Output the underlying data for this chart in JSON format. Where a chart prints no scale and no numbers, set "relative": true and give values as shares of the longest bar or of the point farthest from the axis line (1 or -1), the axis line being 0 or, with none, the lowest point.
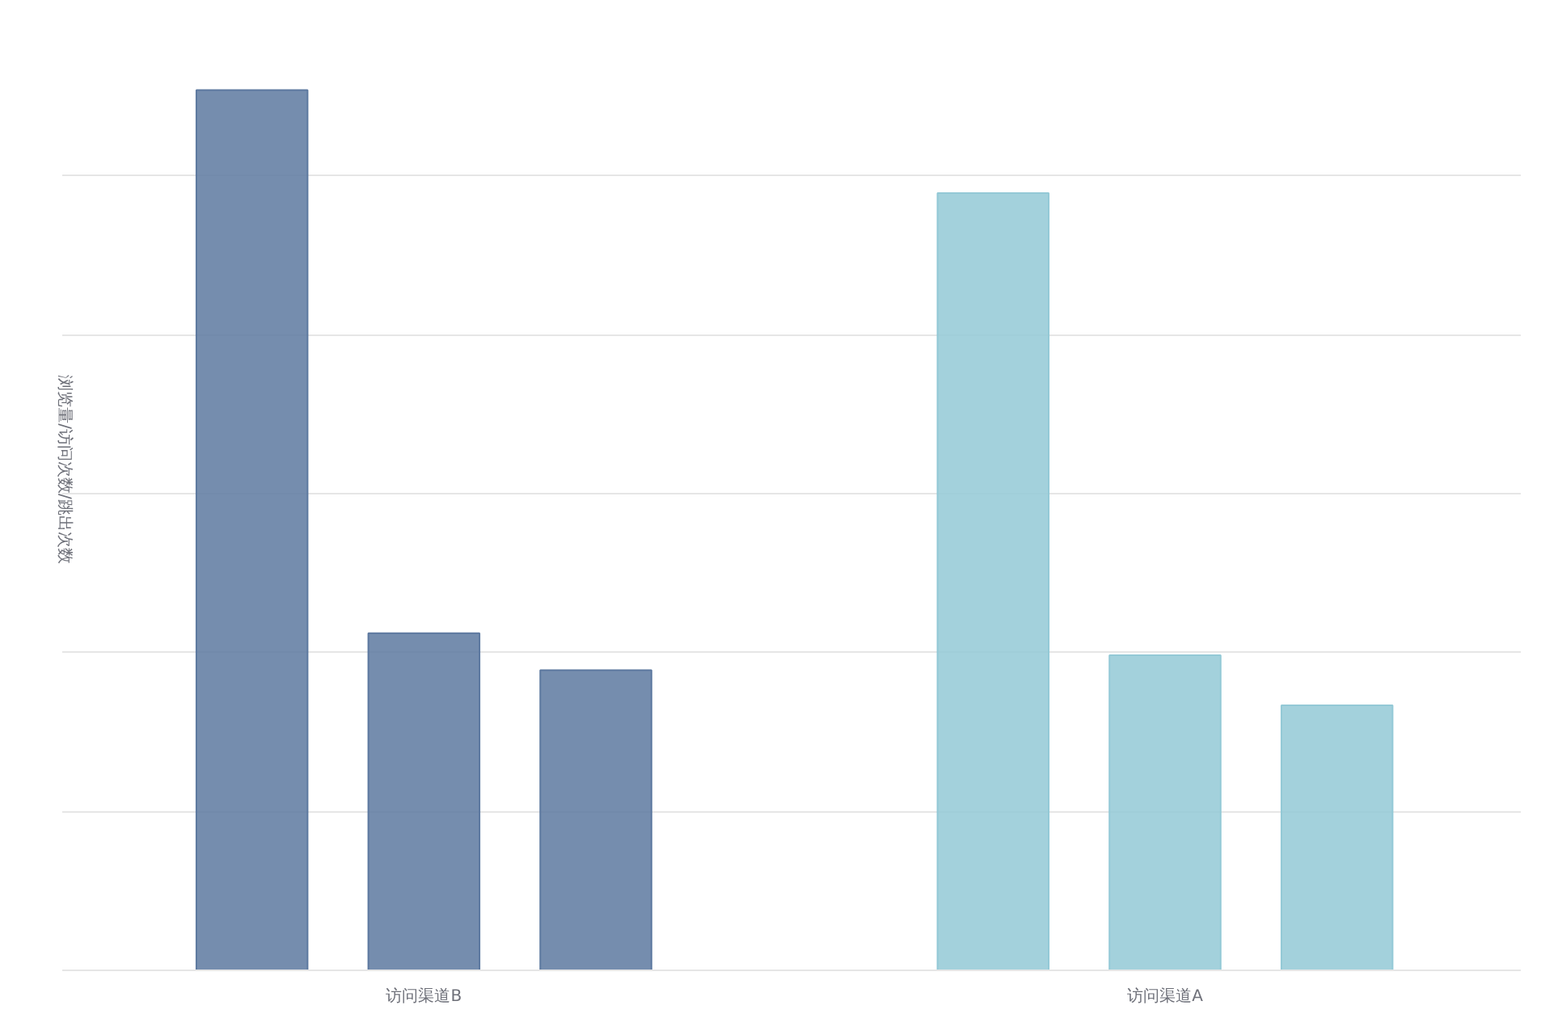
{
  "chart_data": {
    "type": "bar",
    "ylabel": "浏览量/访问次数/跳出次数",
    "categories": [
      "访问渠道B",
      "访问渠道A"
    ],
    "relative": true,
    "grid": "y",
    "series": [
      {
        "colors": [
          "#5d79a0",
          "#93c9d6"
        ],
        "values": [
          1,
          0.883
        ]
      },
      {
        "colors": [
          "#5d79a0",
          "#93c9d6"
        ],
        "values": [
          0.383,
          0.358
        ]
      },
      {
        "colors": [
          "#5d79a0",
          "#93c9d6"
        ],
        "values": [
          0.341,
          0.301
        ]
      }
    ]
  }
}
